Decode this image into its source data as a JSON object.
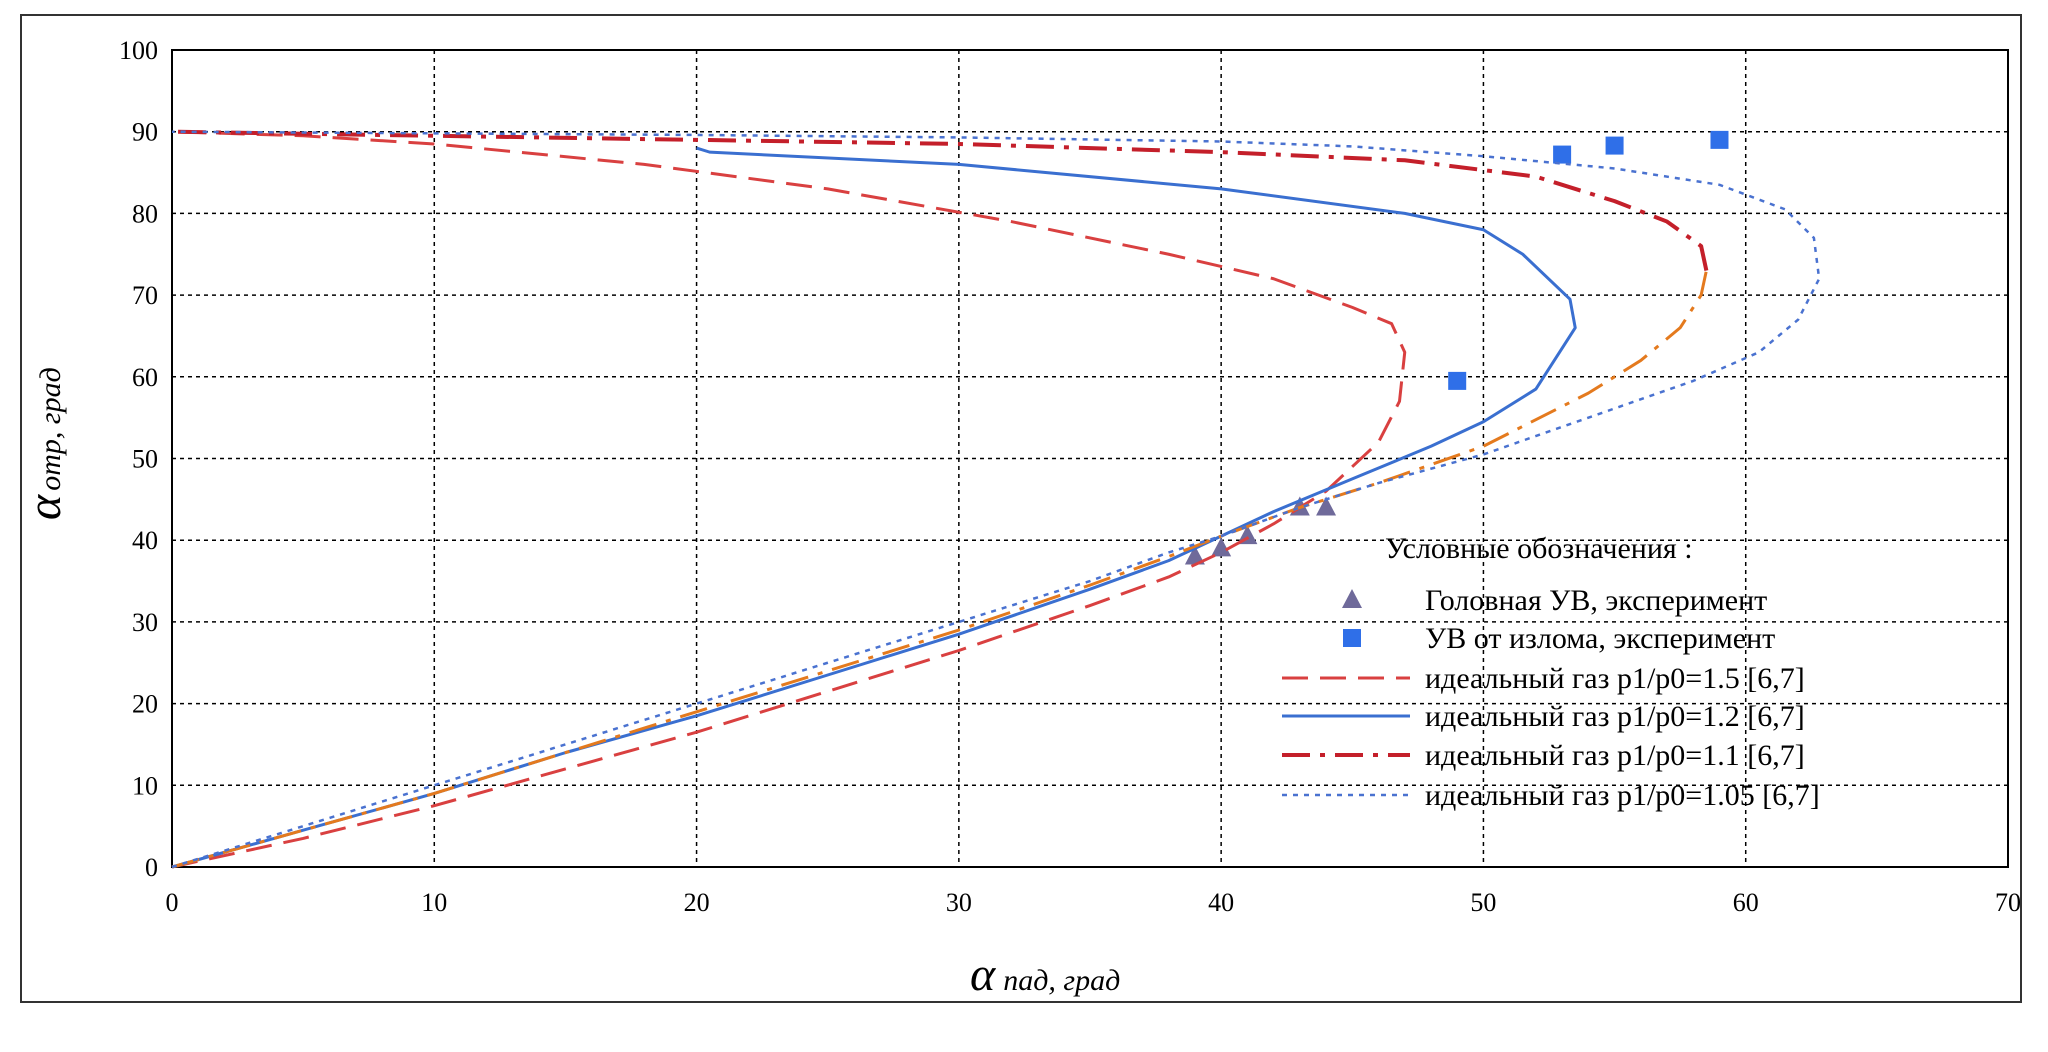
{
  "chart_data": {
    "type": "scatter",
    "title": "",
    "xlabel_main": "α",
    "xlabel_sub": "пад, град",
    "ylabel_main": "α",
    "ylabel_sub": "отр, град",
    "xlim": [
      0,
      70
    ],
    "ylim": [
      0,
      100
    ],
    "x_ticks": [
      "0",
      "10",
      "20",
      "30",
      "40",
      "50",
      "60",
      "70"
    ],
    "y_ticks": [
      "0",
      "10",
      "20",
      "30",
      "40",
      "50",
      "60",
      "70",
      "80",
      "90",
      "100"
    ],
    "grid": true,
    "legend_placement": "bottom-right",
    "legend_title": "Условные обозначения :",
    "series": [
      {
        "name": "Головная УВ, эксперимент",
        "kind": "markers",
        "marker": "triangle",
        "color": "#6f6a9a",
        "x": [
          39,
          40,
          41,
          43,
          44
        ],
        "y": [
          38,
          39,
          40.5,
          44,
          44
        ]
      },
      {
        "name": "УВ от излома, эксперимент",
        "kind": "markers",
        "marker": "square",
        "color": "#2f6fe8",
        "x": [
          49,
          53,
          55,
          59
        ],
        "y": [
          59.5,
          87.2,
          88.3,
          89
        ]
      },
      {
        "name": "идеальный газ p1/p0=1.5 [6,7]",
        "kind": "line",
        "style": "dashed",
        "color": "#d94040",
        "x": [
          0,
          5,
          10,
          15,
          20,
          25,
          30,
          35,
          38,
          40,
          42,
          44,
          46,
          46.8,
          47,
          46.5,
          45,
          42,
          38,
          32,
          25,
          18,
          10,
          5,
          0
        ],
        "y": [
          0,
          3.5,
          7.5,
          12,
          16.5,
          21.5,
          26.5,
          32,
          35.5,
          38.5,
          42,
          46,
          52,
          57,
          63,
          66.5,
          68.5,
          72,
          75,
          79,
          83,
          86,
          88.5,
          89.5,
          90
        ]
      },
      {
        "name": "идеальный газ p1/p0=1.2 [6,7]",
        "kind": "line",
        "style": "solid",
        "color": "#3a6fd0",
        "x": [
          0,
          5,
          10,
          15,
          20,
          25,
          30,
          35,
          38,
          40,
          42,
          45,
          48,
          50,
          52,
          53.5,
          53.3,
          51.5,
          50,
          47,
          40,
          30,
          20.5,
          20
        ],
        "y": [
          0,
          4.5,
          9,
          14,
          18.5,
          23.5,
          28.5,
          34,
          37.5,
          40.5,
          43.5,
          47.5,
          51.5,
          54.5,
          58.5,
          66,
          69.5,
          75,
          78,
          80,
          83,
          86,
          87.5,
          88
        ]
      },
      {
        "name": "идеальный газ p1/p0=1.1 [6,7]",
        "kind": "line",
        "style": "dashdot",
        "color": "#c41f2a",
        "color2": "#e47a1e",
        "x": [
          0,
          5,
          10,
          15,
          20,
          25,
          30,
          35,
          38,
          40,
          43,
          46,
          50,
          54,
          56,
          57.5,
          58.3,
          58.5,
          58.3,
          57,
          55,
          52,
          47,
          40,
          30,
          20,
          10,
          0
        ],
        "y": [
          0,
          4.5,
          9,
          14,
          19,
          24,
          29,
          34.5,
          38,
          40.5,
          44,
          47,
          51.5,
          58,
          62,
          66,
          70,
          73,
          76,
          79,
          81.5,
          84.5,
          86.5,
          87.5,
          88.5,
          89,
          89.5,
          90
        ]
      },
      {
        "name": "идеальный газ p1/p0=1.05 [6,7]",
        "kind": "line",
        "style": "dotted",
        "color": "#4a72d0",
        "x": [
          0,
          5,
          10,
          15,
          20,
          25,
          30,
          35,
          38,
          40,
          43,
          46,
          50,
          54,
          58,
          60.5,
          62,
          62.8,
          62.6,
          61.5,
          59,
          55,
          50,
          45,
          40,
          30,
          20,
          10,
          0
        ],
        "y": [
          0,
          5,
          10,
          15,
          20,
          25,
          30,
          35,
          38.5,
          40.5,
          44,
          47,
          50.5,
          55,
          59.5,
          63,
          67,
          72,
          77,
          80.5,
          83.5,
          85.5,
          87,
          88.2,
          88.8,
          89.3,
          89.6,
          89.8,
          90
        ]
      }
    ]
  }
}
